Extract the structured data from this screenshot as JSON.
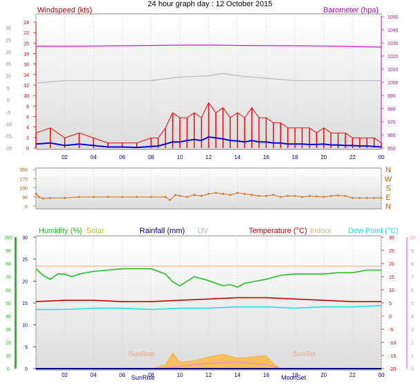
{
  "page": {
    "title": "24 hour graph day : 12 October 2015"
  },
  "x_ticks": [
    "02",
    "04",
    "06",
    "08",
    "10",
    "12",
    "14",
    "16",
    "18",
    "20",
    "22",
    "00"
  ],
  "wind_panel": {
    "label_left": "Windspeed (kts)",
    "label_right": "Barometer (hpa)",
    "left_ticks": [
      "24",
      "22",
      "20",
      "18",
      "16",
      "14",
      "12",
      "10",
      "8",
      "6",
      "4",
      "2",
      "0"
    ],
    "outer_ticks": [
      "30",
      "25",
      "20",
      "15",
      "10",
      "5",
      "0",
      "-5",
      "-10",
      "-15",
      "-20"
    ],
    "right_ticks": [
      "1050",
      "1040",
      "1030",
      "1020",
      "1010",
      "1000",
      "990",
      "980",
      "970",
      "960",
      "950"
    ],
    "colors": {
      "wind": "#ff0000",
      "avg": "#0000e0",
      "baro": "#e020e0",
      "left_label": "#c00000",
      "right_label": "#c000c0"
    }
  },
  "dir_panel": {
    "left_ticks": [
      "360",
      "270",
      "180",
      "90",
      "0"
    ],
    "compass": [
      "N",
      "W",
      "S",
      "E",
      "N"
    ],
    "color": "#d07820"
  },
  "lower_panel": {
    "labels": {
      "humidity": "Humidity (%)",
      "solar": "Solar",
      "rainfall": "Rainfall (mm)",
      "uv": "UV",
      "temperature": "Temperature (°C)",
      "indoor": "Indoor",
      "dewpoint": "Dew Point (°C)"
    },
    "hum_ticks": [
      "100",
      "90",
      "80",
      "70",
      "60",
      "50",
      "40",
      "30",
      "20",
      "10",
      "0"
    ],
    "rain_ticks": [
      "30",
      "25",
      "20",
      "15",
      "10",
      "5",
      "0"
    ],
    "temp_ticks": [
      "30",
      "25",
      "20",
      "15",
      "10",
      "5",
      "0",
      "-5",
      "-10",
      "-15",
      "-20"
    ],
    "uv_ticks": [
      "10",
      "9",
      "8",
      "7",
      "6",
      "5",
      "4",
      "3",
      "2",
      "1",
      "0"
    ],
    "annotations": {
      "sunrise": "SunRise",
      "sunset": "SunSet",
      "moonrise": "MoonRise",
      "moonset": "MoonSet"
    },
    "colors": {
      "humidity": "#20c020",
      "solar": "#c0c000",
      "rainfall": "#000080",
      "uv": "#e0a0e0",
      "temperature": "#c00000",
      "indoor": "#e0b080",
      "dewpoint": "#20e0e0"
    }
  },
  "chart_data": [
    {
      "type": "line",
      "title": "24 hour graph day : 12 October 2015",
      "x_unit": "hour",
      "xlim": [
        0,
        24
      ],
      "series": [
        {
          "name": "Windspeed (kts)",
          "axis": "kts",
          "ylim": [
            0,
            25
          ],
          "x": [
            0,
            1,
            2,
            3,
            4,
            5,
            6,
            7,
            8,
            8.5,
            9,
            9.5,
            10,
            10.5,
            11,
            11.5,
            12,
            12.5,
            13,
            13.5,
            14,
            14.5,
            15,
            15.5,
            16,
            16.5,
            17,
            17.5,
            18,
            18.5,
            19,
            19.5,
            20,
            20.5,
            21,
            21.5,
            22,
            22.5,
            23,
            23.5,
            24
          ],
          "values": [
            3,
            4,
            2,
            3,
            2,
            1,
            1,
            1,
            2,
            2,
            4,
            7,
            6,
            6,
            7,
            6,
            9,
            7,
            8,
            6,
            7,
            6,
            8,
            6,
            6,
            5,
            5,
            4,
            4,
            4,
            4,
            3,
            4,
            3,
            3,
            3,
            2,
            2,
            2,
            2,
            1
          ]
        },
        {
          "name": "Average wind",
          "axis": "kts",
          "ylim": [
            0,
            25
          ],
          "x": [
            0,
            1,
            2,
            3,
            4,
            5,
            6,
            7,
            8,
            8.5,
            9,
            9.5,
            10,
            10.5,
            11,
            11.5,
            12,
            12.5,
            13,
            13.5,
            14,
            14.5,
            15,
            15.5,
            16,
            16.5,
            17,
            17.5,
            18,
            18.5,
            19,
            19.5,
            20,
            20.5,
            21,
            21.5,
            22,
            22.5,
            23,
            23.5,
            24
          ],
          "values": [
            0.8,
            1,
            0.5,
            0.8,
            0.5,
            0.2,
            0.2,
            0.1,
            0.3,
            0.4,
            0.8,
            1.2,
            1.2,
            1.5,
            1.7,
            1.5,
            2.2,
            2,
            1.8,
            1.5,
            1.4,
            1.2,
            1.5,
            1.2,
            1.2,
            1,
            1,
            0.8,
            0.8,
            0.8,
            0.7,
            0.7,
            0.8,
            0.6,
            0.6,
            0.5,
            0.5,
            0.4,
            0.4,
            0.3,
            0.2
          ]
        },
        {
          "name": "Barometer (hpa)",
          "axis": "hpa",
          "ylim": [
            950,
            1050
          ],
          "x": [
            0,
            3,
            6,
            9,
            12,
            15,
            18,
            21,
            24
          ],
          "values": [
            1027.5,
            1027.5,
            1027.8,
            1028.2,
            1028.3,
            1028.0,
            1027.8,
            1027.5,
            1026.8
          ]
        },
        {
          "name": "Wind (scale 2)",
          "axis": "outer",
          "ylim": [
            -20,
            30
          ],
          "x": [
            0,
            2,
            4,
            6,
            8,
            10,
            12,
            13,
            14,
            16,
            18,
            20,
            22,
            24
          ],
          "values": [
            7,
            8,
            8,
            8,
            8,
            9.5,
            10,
            11,
            10,
            9,
            8,
            8,
            8,
            8
          ]
        }
      ]
    },
    {
      "type": "scatter",
      "title": "",
      "ylabel": "Wind direction",
      "ylim": [
        0,
        360
      ],
      "x": [
        0,
        0.2,
        0.5,
        1,
        2,
        3,
        4,
        5,
        6,
        7,
        8,
        9,
        9.3,
        9.7,
        10,
        10.5,
        11,
        11.5,
        12,
        12.5,
        13,
        13.5,
        14,
        14.5,
        15,
        15.5,
        16,
        16.5,
        17,
        17.5,
        18,
        18.5,
        19,
        19.5,
        20,
        20.5,
        21,
        21.5,
        22,
        22.5,
        23,
        23.5,
        24
      ],
      "values": [
        120,
        90,
        75,
        80,
        80,
        90,
        90,
        90,
        90,
        90,
        90,
        90,
        60,
        110,
        100,
        90,
        110,
        100,
        120,
        130,
        120,
        110,
        130,
        120,
        110,
        100,
        100,
        110,
        90,
        100,
        100,
        90,
        100,
        95,
        90,
        100,
        105,
        100,
        80,
        80,
        80,
        80,
        80
      ]
    },
    {
      "type": "line",
      "title": "",
      "xlim": [
        0,
        24
      ],
      "series": [
        {
          "name": "Humidity (%)",
          "axis": "%",
          "ylim": [
            0,
            100
          ],
          "x": [
            0,
            0.5,
            1,
            1.5,
            2,
            2.5,
            3,
            4,
            5,
            6,
            7,
            8,
            9,
            9.5,
            10,
            11,
            12,
            13,
            13.5,
            14,
            14.5,
            15,
            16,
            17,
            18,
            19,
            20,
            21,
            22,
            23,
            24
          ],
          "values": [
            76,
            71,
            68,
            72,
            72,
            70,
            72,
            74,
            75,
            76,
            76,
            76,
            72,
            66,
            63,
            70,
            67,
            63,
            64,
            62,
            65,
            66,
            68,
            71,
            72,
            72,
            72,
            73,
            73,
            75,
            75
          ]
        },
        {
          "name": "Temperature (°C)",
          "axis": "°C",
          "ylim": [
            -20,
            30
          ],
          "x": [
            0,
            2,
            4,
            6,
            8,
            10,
            12,
            14,
            16,
            18,
            20,
            22,
            24
          ],
          "values": [
            5.5,
            6,
            6,
            5.5,
            5.5,
            6,
            6.5,
            7,
            7,
            6.5,
            6,
            5.5,
            5.5
          ]
        },
        {
          "name": "Dew Point (°C)",
          "axis": "°C",
          "ylim": [
            -20,
            30
          ],
          "x": [
            0,
            2,
            4,
            6,
            8,
            10,
            12,
            14,
            16,
            18,
            20,
            22,
            24
          ],
          "values": [
            2.5,
            2.5,
            3,
            3,
            2.5,
            3,
            3,
            3.5,
            3.5,
            3,
            3.5,
            3.5,
            4
          ]
        },
        {
          "name": "Indoor",
          "axis": "°C",
          "ylim": [
            -20,
            30
          ],
          "x": [
            0,
            24
          ],
          "values": [
            19,
            19
          ]
        },
        {
          "name": "Rainfall (mm)",
          "axis": "mm",
          "ylim": [
            0,
            30
          ],
          "x": [
            0,
            24
          ],
          "values": [
            0,
            0
          ]
        },
        {
          "name": "Solar",
          "axis": "%",
          "ylim": [
            0,
            100
          ],
          "x": [
            0,
            7,
            8,
            9,
            9.5,
            10,
            11,
            12,
            13,
            14,
            15,
            16,
            16.5,
            17,
            18,
            24
          ],
          "values": [
            0,
            0,
            0,
            3,
            12,
            5,
            6,
            9,
            11,
            8,
            9,
            10,
            4,
            0,
            0,
            0
          ]
        },
        {
          "name": "UV",
          "axis": "uv",
          "ylim": [
            0,
            10
          ],
          "x": [
            0,
            9,
            10,
            12,
            14,
            16,
            17,
            24
          ],
          "values": [
            0,
            0,
            0.2,
            0.4,
            0.5,
            0.3,
            0,
            0
          ]
        }
      ]
    }
  ]
}
